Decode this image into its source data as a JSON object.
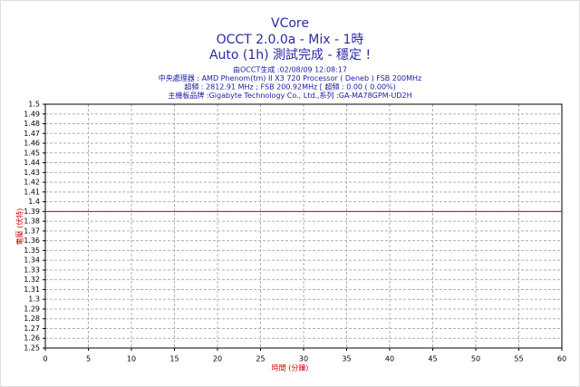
{
  "chart_data": {
    "type": "line",
    "title": "VCore",
    "subtitle": "OCCT 2.0.0a - Mix - 1時",
    "status": "Auto (1h) 測試完成 - 穩定 !",
    "annotations": [
      "由OCCT生成 :02/08/09 12:08:17",
      "中央處理器 : AMD Phenom(tm) II X3 720 Processor ( Deneb ) FSB 200MHz",
      "超頻 : 2812.91 MHz ; FSB 200.92MHz [ 超頻 : 0.00 ( 0.00%)",
      "主機板品牌 :Gigabyte Technology Co., Ltd.,系列 :GA-MA78GPM-UD2H"
    ],
    "x_label": "時間 (分鐘)",
    "y_label": "電壓 (伏特)",
    "x": [
      0,
      60
    ],
    "values": [
      1.39,
      1.39
    ],
    "color": "#cc0000",
    "xlim": [
      0,
      60
    ],
    "xticks": [
      0,
      5,
      10,
      15,
      20,
      25,
      30,
      35,
      40,
      45,
      50,
      55,
      60
    ],
    "ylim": [
      1.25,
      1.5
    ],
    "yticks": [
      1.25,
      1.26,
      1.27,
      1.28,
      1.29,
      1.3,
      1.31,
      1.32,
      1.33,
      1.34,
      1.35,
      1.36,
      1.37,
      1.38,
      1.39,
      1.4,
      1.41,
      1.42,
      1.43,
      1.44,
      1.45,
      1.46,
      1.47,
      1.48,
      1.49,
      1.5
    ],
    "grid": true
  }
}
